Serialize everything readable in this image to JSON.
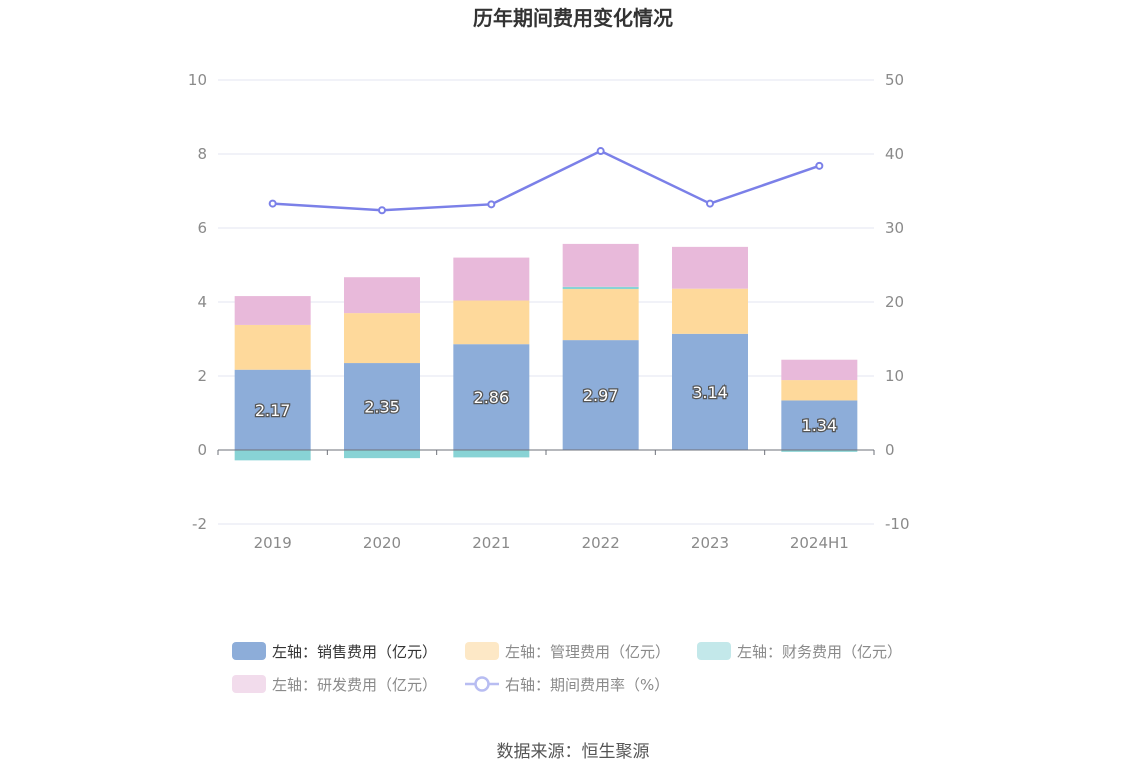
{
  "chart_data": {
    "type": "bar",
    "title": "历年期间费用变化情况",
    "categories": [
      "2019",
      "2020",
      "2021",
      "2022",
      "2023",
      "2024H1"
    ],
    "stacked": true,
    "y_left": {
      "ylim": [
        -2,
        10
      ],
      "ticks": [
        "-2",
        "0",
        "2",
        "4",
        "6",
        "8",
        "10"
      ]
    },
    "y_right": {
      "ylim": [
        -10,
        50
      ],
      "ticks": [
        "-10",
        "0",
        "10",
        "20",
        "30",
        "40",
        "50"
      ]
    },
    "grid": true,
    "series": [
      {
        "name": "左轴：销售费用（亿元）",
        "type": "bar",
        "axis": "left",
        "color": "#8dadd9",
        "values": [
          2.17,
          2.35,
          2.86,
          2.97,
          3.14,
          1.34
        ],
        "labels": [
          "2.17",
          "2.35",
          "2.86",
          "2.97",
          "3.14",
          "1.34"
        ]
      },
      {
        "name": "左轴：管理费用（亿元）",
        "type": "bar",
        "axis": "left",
        "color": "#fed99b",
        "values": [
          1.21,
          1.35,
          1.18,
          1.38,
          1.22,
          0.55
        ]
      },
      {
        "name": "左轴：财务费用（亿元）",
        "type": "bar",
        "axis": "left",
        "color": "#88d3d5",
        "values": [
          -0.28,
          -0.22,
          -0.2,
          0.06,
          0.0,
          -0.05
        ]
      },
      {
        "name": "左轴：研发费用（亿元）",
        "type": "bar",
        "axis": "left",
        "color": "#e8b9da",
        "values": [
          0.78,
          0.97,
          1.16,
          1.16,
          1.13,
          0.55
        ]
      },
      {
        "name": "右轴：期间费用率（%）",
        "type": "line",
        "axis": "right",
        "color": "#7b80e8",
        "values": [
          33.3,
          32.4,
          33.2,
          40.4,
          33.3,
          38.4
        ]
      }
    ],
    "legend_position": "bottom"
  },
  "source": "数据来源：恒生聚源"
}
